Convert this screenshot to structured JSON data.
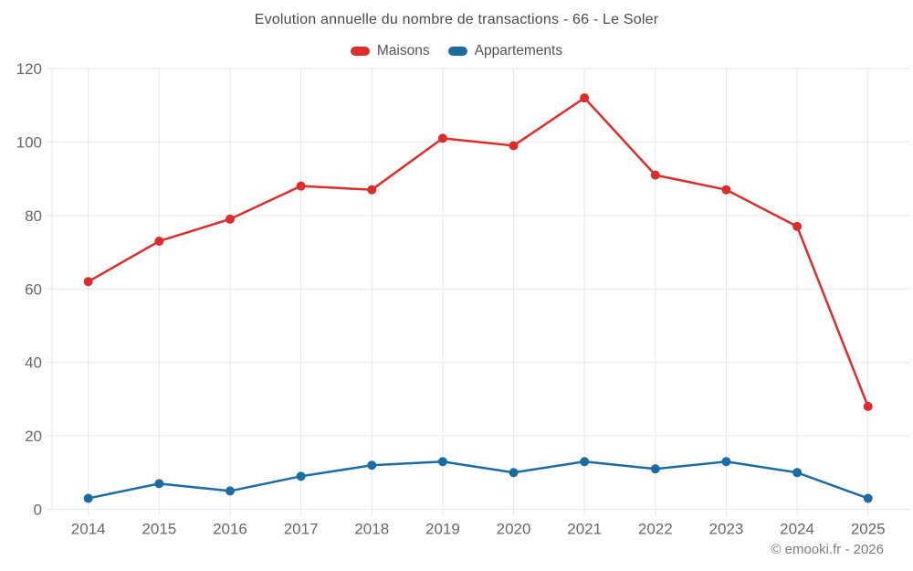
{
  "title": "Evolution annuelle du nombre de transactions - 66 - Le Soler",
  "legend": {
    "items": [
      {
        "label": "Maisons",
        "color": "#dd2c2c"
      },
      {
        "label": "Appartements",
        "color": "#1a6ca3"
      }
    ]
  },
  "footer": {
    "credit": "© emooki.fr - 2026"
  },
  "colors": {
    "background": "#ffffff",
    "grid": "#e7e7e7",
    "axis_text": "#686868",
    "title_text": "#4a4a4a",
    "legend_text": "#545454",
    "footer_text": "#7d7d7d",
    "maisons": "#dd2c2c",
    "appartements": "#1a6ca3"
  },
  "chart_data": {
    "type": "line",
    "title": "Evolution annuelle du nombre de transactions - 66 - Le Soler",
    "categories": [
      "2014",
      "2015",
      "2016",
      "2017",
      "2018",
      "2019",
      "2020",
      "2021",
      "2022",
      "2023",
      "2024",
      "2025"
    ],
    "series": [
      {
        "name": "Maisons",
        "color": "#dd2c2c",
        "values": [
          62,
          73,
          79,
          88,
          87,
          101,
          99,
          112,
          91,
          87,
          77,
          28
        ]
      },
      {
        "name": "Appartements",
        "color": "#1a6ca3",
        "values": [
          3,
          7,
          5,
          9,
          12,
          13,
          10,
          13,
          11,
          13,
          10,
          3
        ]
      }
    ],
    "xlabel": "",
    "ylabel": "",
    "ylim": [
      0,
      120
    ],
    "yticks": [
      0,
      20,
      40,
      60,
      80,
      100,
      120
    ],
    "grid": true,
    "legend_position": "top",
    "point_style": "circle",
    "point_radius": 5
  }
}
